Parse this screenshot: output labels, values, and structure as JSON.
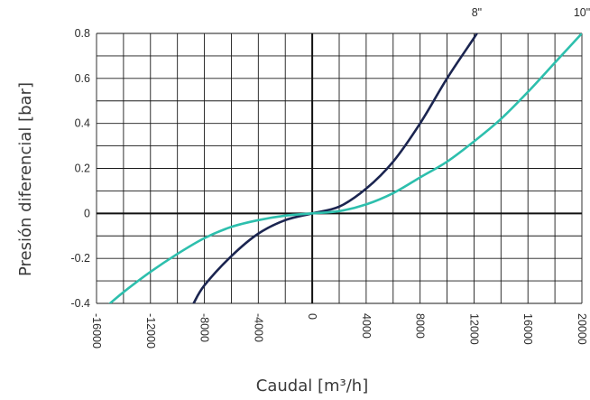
{
  "chart_data": {
    "type": "line",
    "xlabel": "Caudal [m³/h]",
    "ylabel": "Presión diferencial [bar]",
    "xlim": [
      -16000,
      20000
    ],
    "ylim": [
      -0.4,
      0.8
    ],
    "xticks": [
      "-16000",
      "-12000",
      "-8000",
      "-4000",
      "0",
      "4000",
      "8000",
      "12000",
      "16000",
      "20000"
    ],
    "yticks": [
      "0.8",
      "0.6",
      "0.4",
      "0.2",
      "0",
      "-0.2",
      "-0.4"
    ],
    "grid": true,
    "series": [
      {
        "name": "8\"",
        "color": "#1b2550",
        "x": [
          -8800,
          -8000,
          -6000,
          -4000,
          -2000,
          0,
          2000,
          4000,
          6000,
          8000,
          10000,
          12000,
          12200
        ],
        "y": [
          -0.4,
          -0.32,
          -0.19,
          -0.09,
          -0.03,
          0,
          0.03,
          0.11,
          0.23,
          0.4,
          0.6,
          0.78,
          0.8
        ]
      },
      {
        "name": "10\"",
        "color": "#2dbfad",
        "x": [
          -15000,
          -14000,
          -12000,
          -10000,
          -8000,
          -6000,
          -4000,
          -2000,
          0,
          2000,
          4000,
          6000,
          8000,
          10000,
          12000,
          14000,
          16000,
          18000,
          20000
        ],
        "y": [
          -0.4,
          -0.35,
          -0.26,
          -0.18,
          -0.11,
          -0.06,
          -0.03,
          -0.01,
          0,
          0.01,
          0.04,
          0.09,
          0.16,
          0.23,
          0.32,
          0.42,
          0.54,
          0.67,
          0.8
        ]
      }
    ]
  }
}
